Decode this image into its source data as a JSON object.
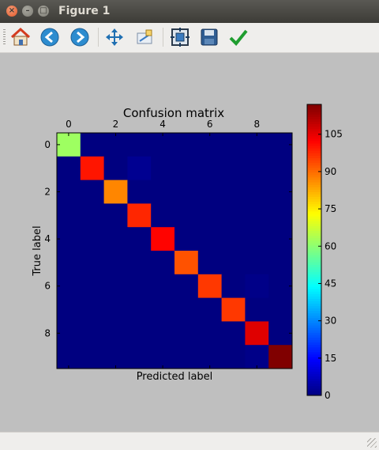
{
  "window": {
    "title": "Figure 1"
  },
  "toolbar": {
    "buttons": [
      {
        "name": "home-icon"
      },
      {
        "name": "back-icon"
      },
      {
        "name": "forward-icon"
      },
      {
        "name": "pan-icon"
      },
      {
        "name": "zoom-icon"
      },
      {
        "name": "subplots-icon"
      },
      {
        "name": "save-icon"
      },
      {
        "name": "edit-check-icon"
      }
    ]
  },
  "chart_data": {
    "type": "heatmap",
    "title": "Confusion matrix",
    "xlabel": "Predicted label",
    "ylabel": "True label",
    "x_ticks": [
      "0",
      "2",
      "4",
      "6",
      "8"
    ],
    "y_ticks": [
      "0",
      "2",
      "4",
      "6",
      "8"
    ],
    "matrix": [
      [
        62,
        0,
        0,
        0,
        0,
        0,
        0,
        0,
        0,
        0
      ],
      [
        0,
        100,
        0,
        2,
        0,
        0,
        0,
        0,
        0,
        0
      ],
      [
        0,
        0,
        87,
        0,
        0,
        0,
        0,
        0,
        0,
        0
      ],
      [
        0,
        0,
        0,
        98,
        0,
        0,
        0,
        0,
        0,
        0
      ],
      [
        0,
        0,
        0,
        0,
        102,
        0,
        0,
        0,
        0,
        0
      ],
      [
        0,
        0,
        0,
        0,
        0,
        93,
        0,
        0,
        0,
        0
      ],
      [
        0,
        0,
        0,
        0,
        0,
        0,
        96,
        0,
        1,
        0
      ],
      [
        0,
        0,
        0,
        0,
        0,
        0,
        0,
        96,
        0,
        0
      ],
      [
        0,
        0,
        0,
        0,
        0,
        0,
        0,
        0,
        106,
        0
      ],
      [
        0,
        0,
        0,
        0,
        0,
        0,
        0,
        0,
        1,
        117
      ]
    ],
    "colorbar": {
      "min": 0,
      "max": 117,
      "ticks": [
        0,
        15,
        30,
        45,
        60,
        75,
        90,
        105
      ]
    },
    "colormap": "jet"
  }
}
